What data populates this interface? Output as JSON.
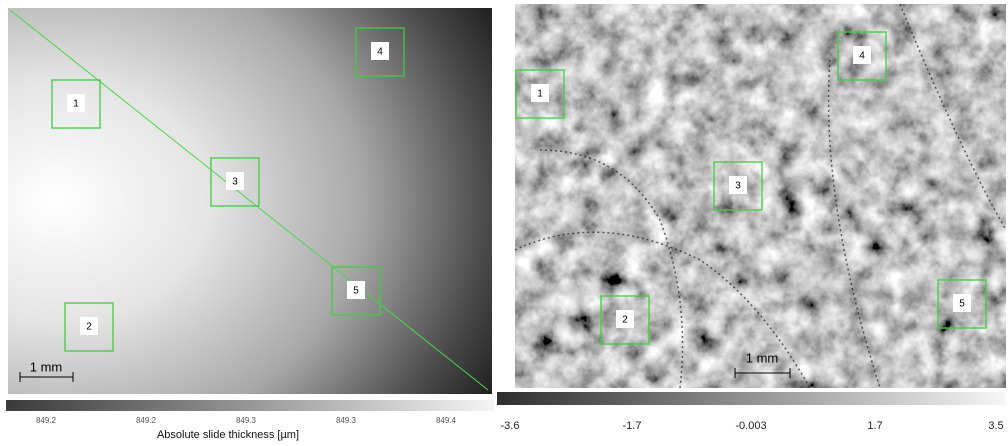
{
  "left_panel": {
    "regions": [
      "1",
      "2",
      "3",
      "4",
      "5"
    ],
    "scale_bar": "1 mm",
    "colorbar": {
      "ticks": [
        "849.2",
        "849.2",
        "849.3",
        "849.3",
        "849.4"
      ],
      "label": "Absolute slide thickness [µm]"
    }
  },
  "right_panel": {
    "regions": [
      "1",
      "2",
      "3",
      "4",
      "5"
    ],
    "scale_bar": "1 mm",
    "colorbar": {
      "ticks": [
        "-3.6",
        "-1.7",
        "-0.003",
        "1.7",
        "3.5"
      ]
    }
  }
}
